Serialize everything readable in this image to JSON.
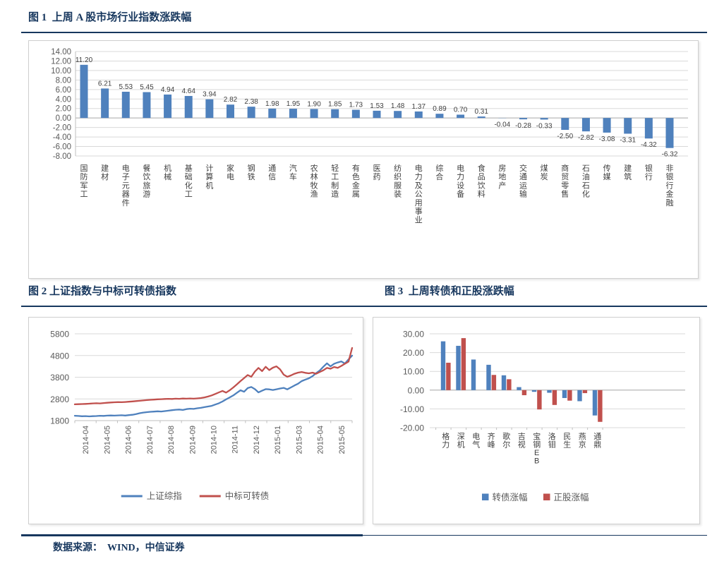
{
  "page": {
    "fig1_title": "图 1  上周 A 股市场行业指数涨跌幅",
    "fig2_title": "图 2 上证指数与中标可转债指数",
    "fig3_title": "图 3  上周转债和正股涨跌幅",
    "footer": "数据来源：  WIND，中信证券"
  },
  "colors": {
    "accent_navy": "#17375E",
    "bar_blue": "#4F81BD",
    "bar_red": "#C0504D",
    "gridline": "#D9D9D9",
    "axis_text": "#595959",
    "label_text": "#404040"
  },
  "chart_data": [
    {
      "id": "industry_bar",
      "type": "bar",
      "title": "上周 A 股市场行业指数涨跌幅",
      "categories": [
        "国防军工",
        "建材",
        "电子元器件",
        "餐饮旅游",
        "机械",
        "基础化工",
        "计算机",
        "家电",
        "钢铁",
        "通信",
        "汽车",
        "农林牧渔",
        "轻工制造",
        "有色金属",
        "医药",
        "纺织服装",
        "电力及公用事业",
        "综合",
        "电力设备",
        "食品饮料",
        "房地产",
        "交通运输",
        "煤炭",
        "商贸零售",
        "石油石化",
        "传媒",
        "建筑",
        "银行",
        "非银行金融"
      ],
      "values": [
        11.2,
        6.21,
        5.53,
        5.45,
        4.94,
        4.64,
        3.94,
        2.82,
        2.38,
        1.98,
        1.95,
        1.9,
        1.85,
        1.73,
        1.53,
        1.48,
        1.37,
        0.89,
        0.7,
        0.31,
        -0.04,
        -0.28,
        -0.33,
        -2.5,
        -2.82,
        -3.08,
        -3.31,
        -4.32,
        -6.32
      ],
      "ylim": [
        -8,
        14
      ],
      "ytick_step": 2,
      "bar_color": "#4F81BD",
      "grid": true,
      "legend": "none"
    },
    {
      "id": "index_lines",
      "type": "line",
      "title": "上证指数与中标可转债指数",
      "x_labels": [
        "2014-04",
        "2014-05",
        "2014-06",
        "2014-07",
        "2014-08",
        "2014-09",
        "2014-10",
        "2014-11",
        "2014-12",
        "2015-01",
        "2015-03",
        "2015-04",
        "2015-05"
      ],
      "ylim": [
        1800,
        5800
      ],
      "yticks": [
        5800,
        4800,
        3800,
        2800,
        1800
      ],
      "grid": true,
      "legend": "bottom",
      "series": [
        {
          "name": "上证综指",
          "color": "#4F81BD",
          "values": [
            2025,
            2015,
            2000,
            2008,
            1995,
            2005,
            2012,
            2025,
            2018,
            2030,
            2038,
            2032,
            2040,
            2048,
            2035,
            2055,
            2070,
            2100,
            2140,
            2170,
            2190,
            2205,
            2215,
            2230,
            2220,
            2240,
            2260,
            2280,
            2300,
            2310,
            2290,
            2330,
            2350,
            2340,
            2370,
            2390,
            2420,
            2450,
            2480,
            2540,
            2600,
            2680,
            2780,
            2870,
            2960,
            3080,
            3200,
            3130,
            3300,
            3350,
            3250,
            3100,
            3180,
            3250,
            3240,
            3210,
            3245,
            3280,
            3310,
            3240,
            3330,
            3420,
            3500,
            3620,
            3690,
            3750,
            3850,
            3990,
            4110,
            4280,
            4440,
            4300,
            4420,
            4480,
            4530,
            4430,
            4620,
            4800
          ]
        },
        {
          "name": "中标可转债",
          "color": "#C0504D",
          "values": [
            2550,
            2558,
            2565,
            2572,
            2580,
            2592,
            2600,
            2595,
            2610,
            2622,
            2635,
            2645,
            2652,
            2648,
            2660,
            2672,
            2685,
            2700,
            2715,
            2730,
            2745,
            2758,
            2770,
            2782,
            2790,
            2798,
            2805,
            2800,
            2812,
            2805,
            2818,
            2812,
            2820,
            2812,
            2825,
            2840,
            2870,
            2910,
            2960,
            3030,
            3100,
            3170,
            3090,
            3200,
            3330,
            3470,
            3620,
            3760,
            3900,
            3820,
            4060,
            4230,
            4080,
            4280,
            4130,
            4240,
            4300,
            4160,
            3920,
            3820,
            3880,
            3960,
            4010,
            4040,
            4000,
            3980,
            4010,
            3960,
            4040,
            4120,
            4230,
            4190,
            4270,
            4230,
            4320,
            4420,
            4520,
            5150
          ]
        }
      ]
    },
    {
      "id": "cb_stock_bar",
      "type": "bar",
      "title": "上周转债和正股涨跌幅",
      "categories": [
        "格力",
        "深机",
        "电气",
        "齐峰",
        "歌尔",
        "吉视",
        "宝钢EB",
        "洛钼",
        "民生",
        "燕京",
        "通鼎"
      ],
      "ylim": [
        -20,
        30
      ],
      "yticks": [
        30,
        20,
        10,
        0,
        -10,
        -20
      ],
      "grid": true,
      "legend": "bottom",
      "series": [
        {
          "name": "转债涨幅",
          "color": "#4F81BD",
          "values": [
            26.0,
            23.6,
            16.3,
            13.5,
            7.9,
            1.6,
            -0.9,
            -1.4,
            -4.2,
            -5.9,
            -13.5
          ]
        },
        {
          "name": "正股涨幅",
          "color": "#C0504D",
          "values": [
            14.6,
            27.7,
            0.0,
            8.1,
            5.8,
            -2.7,
            -10.3,
            -7.9,
            -5.6,
            -1.6,
            -16.9
          ]
        }
      ]
    }
  ]
}
